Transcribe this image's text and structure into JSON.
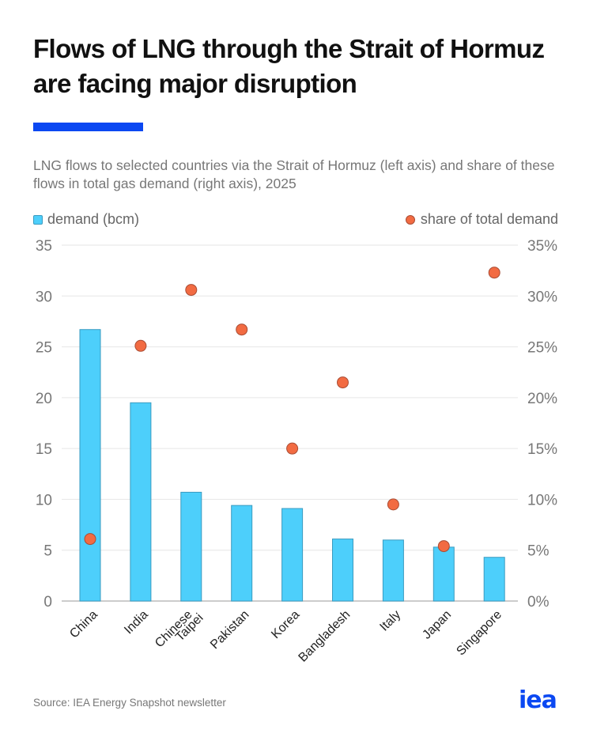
{
  "header": {
    "title": "Flows of LNG through the Strait of Hormuz are facing major disruption",
    "subtitle": "LNG flows to selected countries via the Strait of Hormuz (left axis) and share of these flows in total gas demand (right axis), 2025"
  },
  "legend": {
    "bars_label": "demand (bcm)",
    "dots_label": "share of total demand"
  },
  "footer": {
    "source": "Source: IEA Energy Snapshot newsletter",
    "logo_text": "iea"
  },
  "colors": {
    "bar_fill": "#4dcffb",
    "bar_stroke": "#3a9bc0",
    "dot_fill": "#f26b42",
    "dot_stroke": "#a94d35",
    "accent": "#0b48f2",
    "grid": "#e6e6e6",
    "axis": "#bbbbbb",
    "tick_text": "#777777"
  },
  "chart_data": {
    "type": "bar",
    "title": "Flows of LNG through the Strait of Hormuz are facing major disruption",
    "subtitle": "LNG flows to selected countries via the Strait of Hormuz (left axis) and share of these flows in total gas demand (right axis), 2025",
    "categories": [
      "China",
      "India",
      "Chinese Taipei",
      "Pakistan",
      "Korea",
      "Bangladesh",
      "Italy",
      "Japan",
      "Singapore"
    ],
    "series": [
      {
        "name": "demand (bcm)",
        "type": "bar",
        "axis": "left",
        "values": [
          26.7,
          19.5,
          10.7,
          9.4,
          9.1,
          6.1,
          6.0,
          5.3,
          4.3
        ]
      },
      {
        "name": "share of total demand",
        "type": "scatter",
        "axis": "right",
        "unit": "%",
        "values": [
          6.1,
          25.1,
          30.6,
          26.7,
          15.0,
          21.5,
          9.5,
          5.4,
          32.3
        ]
      }
    ],
    "xlabel": "",
    "ylabel": "bcm",
    "y2label": "%",
    "ylim": [
      0,
      35
    ],
    "y2lim": [
      0,
      35
    ],
    "yticks": [
      0,
      5,
      10,
      15,
      20,
      25,
      30,
      35
    ],
    "y2ticks": [
      "0%",
      "5%",
      "10%",
      "15%",
      "20%",
      "25%",
      "30%",
      "35%"
    ],
    "grid": true,
    "legend_position": "top",
    "source": "Source: IEA Energy Snapshot newsletter"
  }
}
